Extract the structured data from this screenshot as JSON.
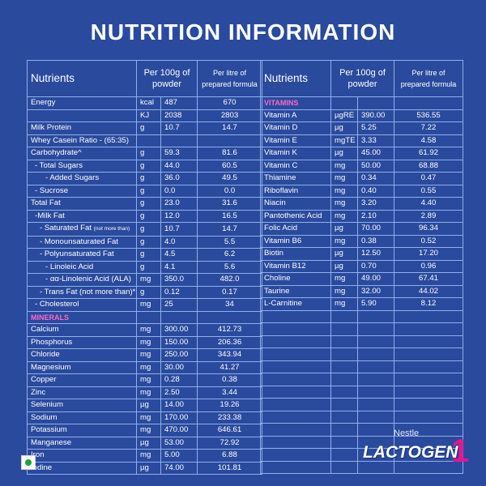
{
  "title": "NUTRITION INFORMATION",
  "left_table": {
    "headers": [
      "Nutrients",
      "Per 100g of powder",
      "Per litre of prepared formula"
    ],
    "rows": [
      {
        "name": "Energy",
        "unit": "kcal",
        "value": "487",
        "per_litre": "670",
        "indent": 0
      },
      {
        "name": "",
        "unit": "KJ",
        "value": "2038",
        "per_litre": "2803",
        "indent": 0
      },
      {
        "name": "Milk Protein",
        "unit": "g",
        "value": "10.7",
        "per_litre": "14.7",
        "indent": 0
      },
      {
        "name": "Whey Casein Ratio - (65:35)",
        "unit": "",
        "value": "",
        "per_litre": "",
        "indent": 0
      },
      {
        "name": "Carbohydrate^",
        "unit": "g",
        "value": "59.3",
        "per_litre": "81.6",
        "indent": 0
      },
      {
        "name": "- Total Sugars",
        "unit": "g",
        "value": "44.0",
        "per_litre": "60.5",
        "indent": 1
      },
      {
        "name": "- Added Sugars",
        "unit": "g",
        "value": "36.0",
        "per_litre": "49.5",
        "indent": 3
      },
      {
        "name": "- Sucrose",
        "unit": "g",
        "value": "0.0",
        "per_litre": "0.0",
        "indent": 1
      },
      {
        "name": "Total Fat",
        "unit": "g",
        "value": "23.0",
        "per_litre": "31.6",
        "indent": 0
      },
      {
        "name": "-Milk Fat",
        "unit": "g",
        "value": "12.0",
        "per_litre": "16.5",
        "indent": 1
      },
      {
        "name": "- Saturated Fat",
        "note": "(not more than)",
        "unit": "g",
        "value": "10.7",
        "per_litre": "14.7",
        "indent": 2
      },
      {
        "name": "- Monounsaturated Fat",
        "unit": "g",
        "value": "4.0",
        "per_litre": "5.5",
        "indent": 2
      },
      {
        "name": "- Polyunsaturated Fat",
        "unit": "g",
        "value": "4.5",
        "per_litre": "6.2",
        "indent": 2
      },
      {
        "name": "- Linoleic Acid",
        "unit": "g",
        "value": "4.1",
        "per_litre": "5.6",
        "indent": 3
      },
      {
        "name": "- αα-Linolenic Acid (ALA)",
        "unit": "mg",
        "value": "350.0",
        "per_litre": "482.0",
        "indent": 3
      },
      {
        "name": "- Trans Fat (not more than)*",
        "unit": "g",
        "value": "0.12",
        "per_litre": "0.17",
        "indent": 2
      },
      {
        "name": "- Cholesterol",
        "unit": "mg",
        "value": "25",
        "per_litre": "34",
        "indent": 1
      }
    ],
    "minerals_label": "MINERALS",
    "minerals": [
      {
        "name": "Calcium",
        "unit": "mg",
        "value": "300.00",
        "per_litre": "412.73"
      },
      {
        "name": "Phosphorus",
        "unit": "mg",
        "value": "150.00",
        "per_litre": "206.36"
      },
      {
        "name": "Chloride",
        "unit": "mg",
        "value": "250.00",
        "per_litre": "343.94"
      },
      {
        "name": "Magnesium",
        "unit": "mg",
        "value": "30.00",
        "per_litre": "41.27"
      },
      {
        "name": "Copper",
        "unit": "mg",
        "value": "0.28",
        "per_litre": "0.38"
      },
      {
        "name": "Zinc",
        "unit": "mg",
        "value": "2.50",
        "per_litre": "3.44"
      },
      {
        "name": "Selenium",
        "unit": "µg",
        "value": "14.00",
        "per_litre": "19.26"
      },
      {
        "name": "Sodium",
        "unit": "mg",
        "value": "170.00",
        "per_litre": "233.38"
      },
      {
        "name": "Potassium",
        "unit": "mg",
        "value": "470.00",
        "per_litre": "646.61"
      },
      {
        "name": "Manganese",
        "unit": "µg",
        "value": "53.00",
        "per_litre": "72.92"
      },
      {
        "name": "Iron",
        "unit": "mg",
        "value": "5.00",
        "per_litre": "6.88"
      },
      {
        "name": "Iodine",
        "unit": "µg",
        "value": "74.00",
        "per_litre": "101.81"
      }
    ]
  },
  "right_table": {
    "headers": [
      "Nutrients",
      "Per 100g of powder",
      "Per litre of prepared formula"
    ],
    "vitamins_label": "VITAMINS",
    "vitamins": [
      {
        "name": "Vitamin A",
        "unit": "µgRE",
        "value": "390.00",
        "per_litre": "536.55"
      },
      {
        "name": "Vitamin D",
        "unit": "µg",
        "value": "5.25",
        "per_litre": "7.22"
      },
      {
        "name": "Vitamin E",
        "unit": "mgTE",
        "value": "3.33",
        "per_litre": "4.58"
      },
      {
        "name": "Vitamin K",
        "unit": "µg",
        "value": "45.00",
        "per_litre": "61.92"
      },
      {
        "name": "Vitamin C",
        "unit": "mg",
        "value": "50.00",
        "per_litre": "68.88"
      },
      {
        "name": "Thiamine",
        "unit": "mg",
        "value": "0.34",
        "per_litre": "0.47"
      },
      {
        "name": "Riboflavin",
        "unit": "mg",
        "value": "0.40",
        "per_litre": "0.55"
      },
      {
        "name": "Niacin",
        "unit": "mg",
        "value": "3.20",
        "per_litre": "4.40"
      },
      {
        "name": "Pantothenic Acid",
        "unit": "mg",
        "value": "2.10",
        "per_litre": "2.89"
      },
      {
        "name": "Folic Acid",
        "unit": "µg",
        "value": "70.00",
        "per_litre": "96.34"
      },
      {
        "name": "Vitamin B6",
        "unit": "mg",
        "value": "0.38",
        "per_litre": "0.52"
      },
      {
        "name": "Biotin",
        "unit": "µg",
        "value": "12.50",
        "per_litre": "17.20"
      },
      {
        "name": "Vitamin B12",
        "unit": "µg",
        "value": "0.70",
        "per_litre": "0.96"
      },
      {
        "name": "Choline",
        "unit": "mg",
        "value": "49.00",
        "per_litre": "67.41"
      },
      {
        "name": "Taurine",
        "unit": "mg",
        "value": "32.00",
        "per_litre": "44.02"
      },
      {
        "name": "L-Carnitine",
        "unit": "mg",
        "value": "5.90",
        "per_litre": "8.12"
      }
    ],
    "empty_rows": 13
  },
  "brand": {
    "maker": "Nestle",
    "name": "LACTOGEN",
    "stage": "1",
    "accent": "#e3168f",
    "background": "#2a4a9e",
    "grid_line": "#8fb0e8",
    "veg_mark": "veg-symbol-icon"
  }
}
